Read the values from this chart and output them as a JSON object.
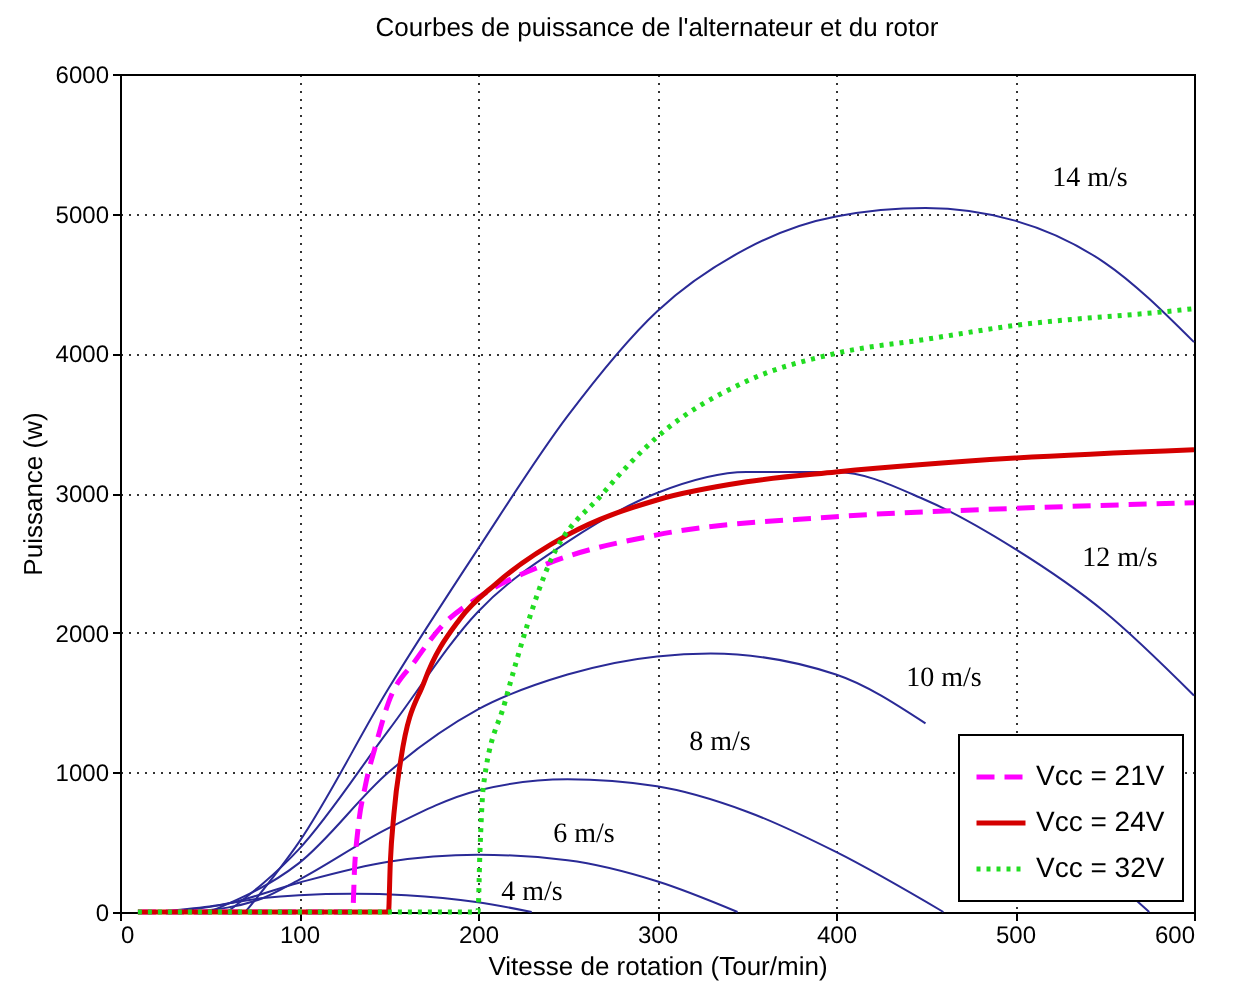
{
  "chart_data": {
    "type": "line",
    "title": "Courbes de puissance de l'alternateur et du rotor",
    "xlabel": "Vitesse de rotation (Tour/min)",
    "ylabel": "Puissance (w)",
    "xlim": [
      0,
      600
    ],
    "xticks": [
      0,
      100,
      200,
      300,
      400,
      500,
      600
    ],
    "ylim": [
      0,
      6000
    ],
    "yticks": [
      0,
      1000,
      2000,
      3000,
      4000,
      5000,
      6000
    ],
    "grid": true,
    "legend": "bottom right",
    "marker": "none",
    "series": [
      {
        "color": "#2a2a96",
        "line_style": "solid",
        "x": [
          20,
          50,
          80,
          100,
          130,
          160,
          200,
          230
        ],
        "values": [
          0,
          40,
          100,
          120,
          130,
          120,
          70,
          0
        ]
      },
      {
        "color": "#2a2a96",
        "line_style": "solid",
        "x": [
          30,
          60,
          100,
          150,
          200,
          250,
          300,
          345
        ],
        "values": [
          0,
          60,
          210,
          360,
          410,
          370,
          220,
          0
        ]
      },
      {
        "color": "#2a2a96",
        "line_style": "solid",
        "x": [
          40,
          80,
          100,
          150,
          200,
          250,
          300,
          350,
          400,
          460
        ],
        "values": [
          0,
          100,
          230,
          600,
          870,
          950,
          900,
          720,
          430,
          0
        ]
      },
      {
        "color": "#2a2a96",
        "line_style": "solid",
        "x": [
          50,
          100,
          150,
          200,
          250,
          300,
          330,
          400,
          450,
          500,
          568,
          575
        ],
        "values": [
          0,
          350,
          1000,
          1450,
          1700,
          1830,
          1850,
          1700,
          1350,
          null,
          80,
          0
        ]
      },
      {
        "color": "#2a2a96",
        "line_style": "solid",
        "x": [
          60,
          100,
          150,
          200,
          250,
          300,
          350,
          400,
          450,
          500,
          550,
          600
        ],
        "values": [
          0,
          450,
          1300,
          2150,
          2650,
          3000,
          3150,
          3150,
          2950,
          2600,
          2150,
          1550
        ]
      },
      {
        "color": "#2a2a96",
        "line_style": "solid",
        "x": [
          70,
          100,
          150,
          200,
          250,
          300,
          350,
          400,
          450,
          500,
          550,
          600
        ],
        "values": [
          0,
          500,
          1600,
          2600,
          3550,
          4300,
          4750,
          4980,
          5040,
          4950,
          4650,
          4080
        ]
      },
      {
        "name": "Vcc = 21V",
        "color": "#ff00ff",
        "line_style": "dashed",
        "x": [
          10,
          130,
          131,
          133,
          137,
          143,
          150,
          165,
          180,
          200,
          240,
          300,
          400,
          500,
          600
        ],
        "values": [
          0,
          0,
          300,
          600,
          900,
          1200,
          1500,
          1800,
          2050,
          2250,
          2500,
          2700,
          2830,
          2890,
          2930
        ]
      },
      {
        "name": "Vcc = 24V",
        "color": "#d40000",
        "line_style": "solid",
        "x": [
          10,
          150,
          151,
          153,
          157,
          170,
          190,
          210,
          250,
          300,
          350,
          400,
          500,
          600
        ],
        "values": [
          0,
          0,
          350,
          700,
          1100,
          1650,
          2100,
          2350,
          2700,
          2950,
          3080,
          3150,
          3250,
          3310
        ]
      },
      {
        "name": "Vcc = 32V",
        "color": "#22dd22",
        "line_style": "dotted",
        "x": [
          10,
          200,
          201,
          203,
          215,
          240,
          270,
          300,
          350,
          400,
          450,
          500,
          585,
          600
        ],
        "values": [
          0,
          0,
          400,
          900,
          1500,
          2500,
          3000,
          3400,
          3800,
          4000,
          4100,
          4200,
          4300,
          4320
        ]
      }
    ],
    "annotations": [
      "14 m/s",
      "12 m/s",
      "10 m/s",
      "8 m/s",
      "6 m/s",
      "4 m/s"
    ]
  }
}
